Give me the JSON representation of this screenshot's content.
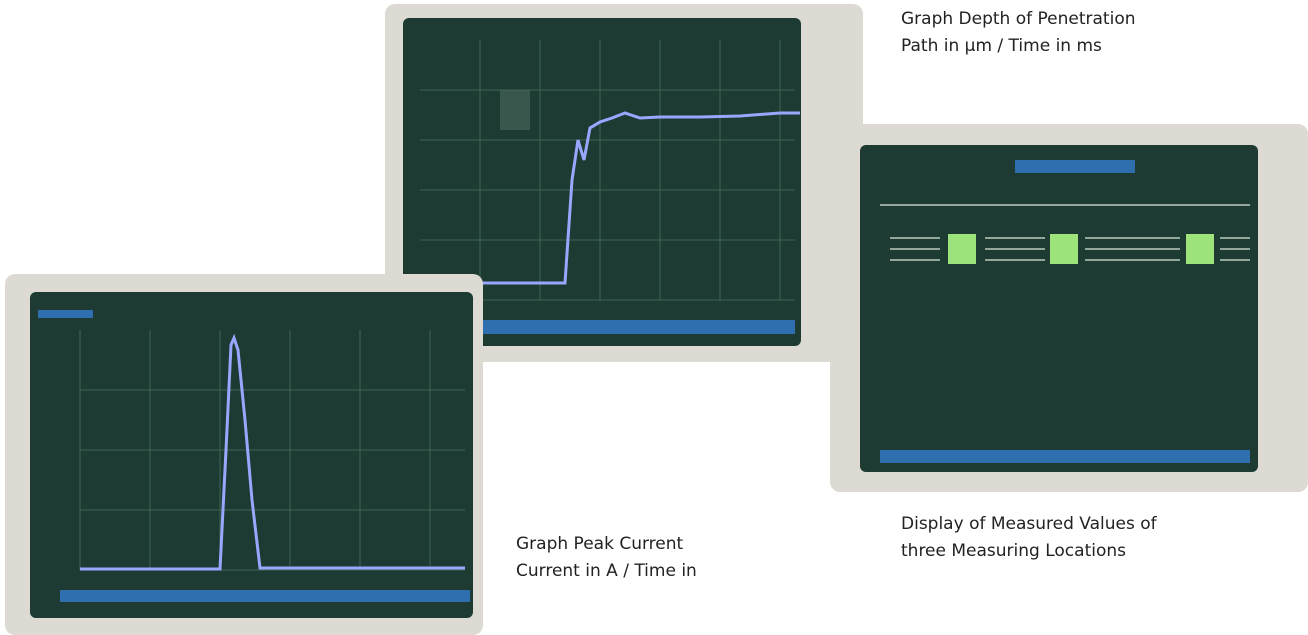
{
  "captions": {
    "depth": {
      "line1": "Graph Depth of Penetration",
      "line2": "Path in µm / Time in ms"
    },
    "values": {
      "line1": "Display of Measured Values of",
      "line2": "three Measuring Locations"
    },
    "current": {
      "line1": "Graph Peak Current",
      "line2": "Current in A / Time in"
    }
  }
}
